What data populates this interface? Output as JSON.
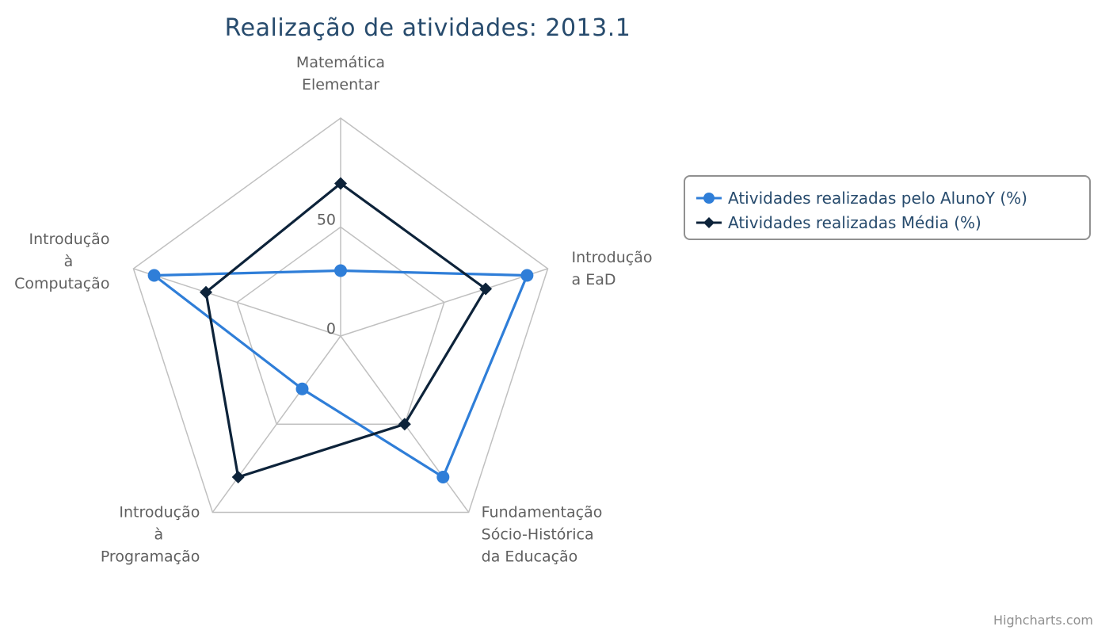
{
  "chart": {
    "credits": "Highcharts.com",
    "colors": {
      "grid": "#c0c0c0",
      "series1": "#2f7ed8",
      "series2": "#0d233a"
    }
  },
  "chart_data": {
    "type": "radar",
    "title": "Realização de atividades: 2013.1",
    "categories": [
      [
        "Matemática",
        "Elementar"
      ],
      [
        "Introdução",
        "a EaD"
      ],
      [
        "Fundamentação",
        "Sócio-Histórica",
        "da Educação"
      ],
      [
        "Introdução",
        "à",
        "Programação"
      ],
      [
        "Introdução",
        "à",
        "Computação"
      ]
    ],
    "axis": {
      "min": 0,
      "max": 100,
      "ticks": [
        0,
        50,
        100
      ],
      "tick_labels": [
        "0",
        "50"
      ]
    },
    "grid": true,
    "legend_position": "right",
    "series": [
      {
        "name": "Atividades realizadas pelo AlunoY (%)",
        "marker": "circle",
        "color": "#2f7ed8",
        "values": [
          30,
          90,
          80,
          30,
          90
        ]
      },
      {
        "name": "Atividades realizadas Média (%)",
        "marker": "diamond",
        "color": "#0d233a",
        "values": [
          70,
          70,
          50,
          80,
          65
        ]
      }
    ]
  }
}
